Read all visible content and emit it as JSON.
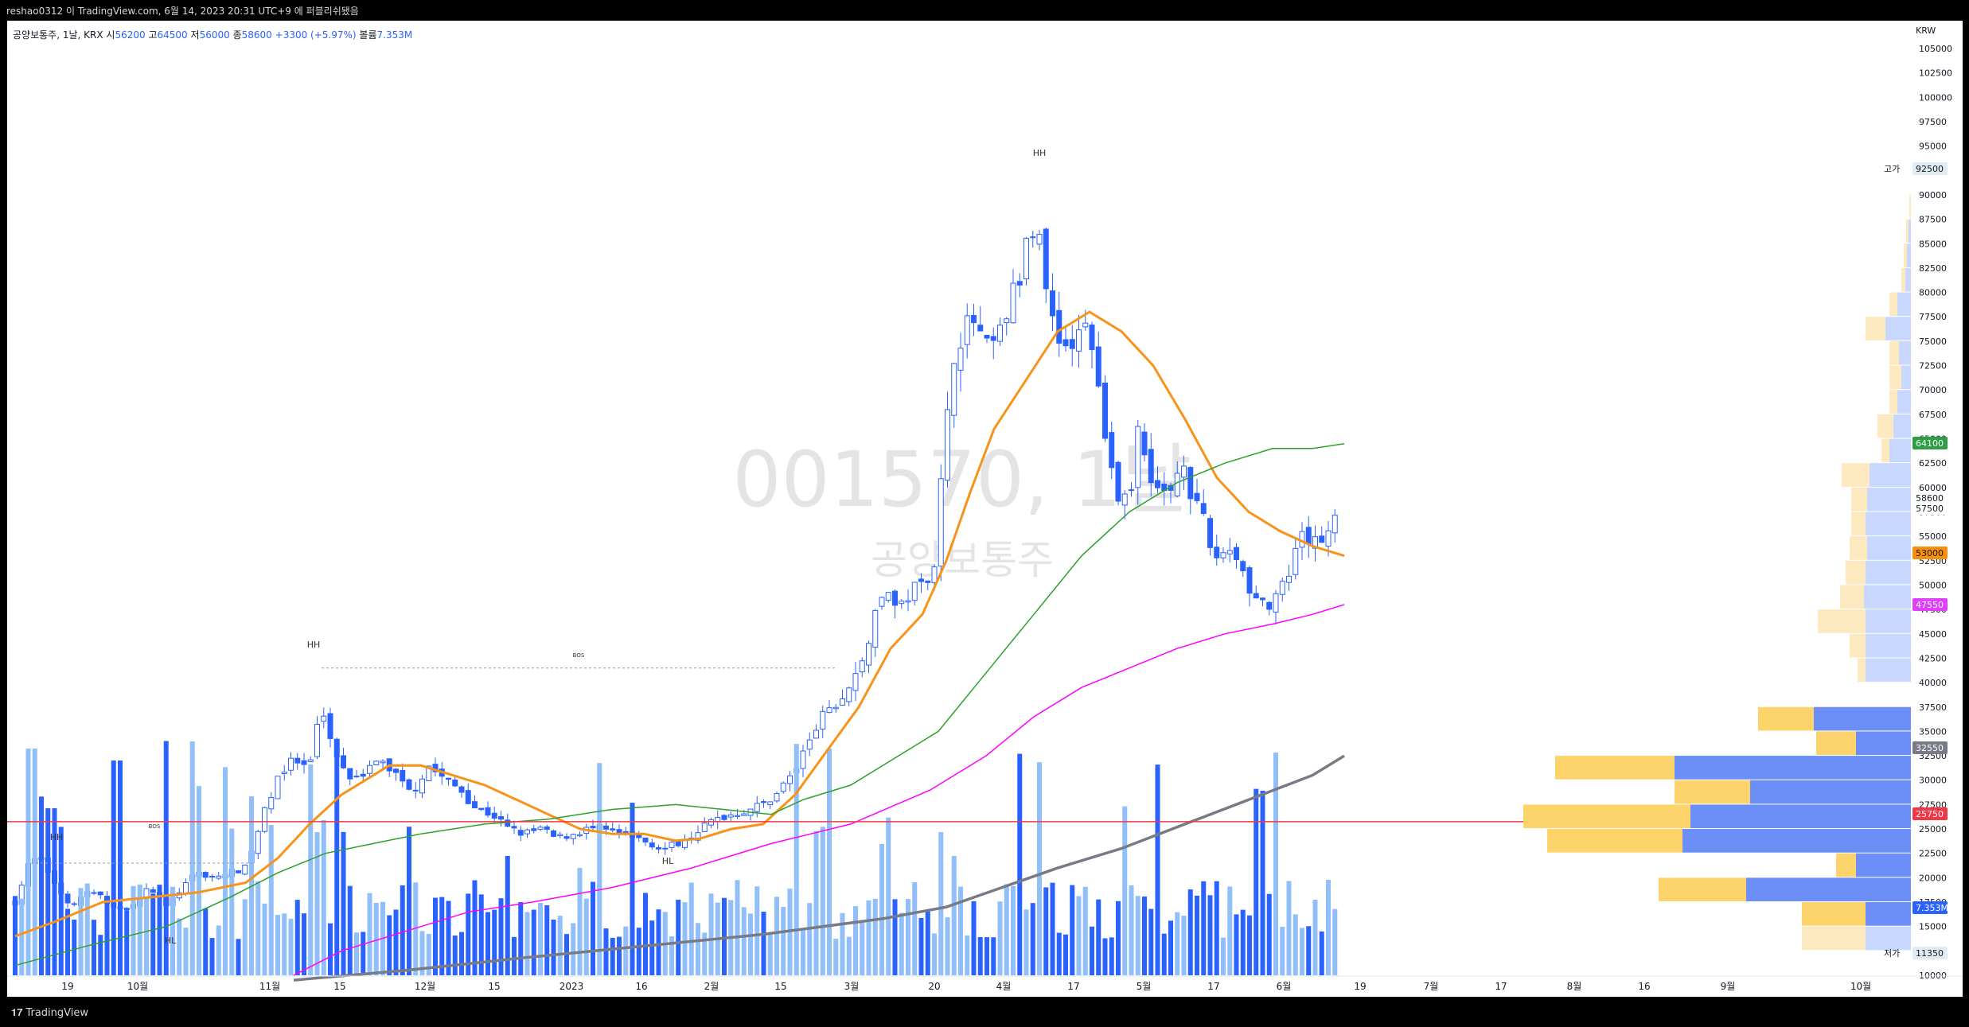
{
  "header": {
    "published": "reshao0312 이 TradingView.com, 6월 14, 2023 20:31 UTC+9 에 퍼블리쉬됐음"
  },
  "legend": {
    "symbol": "공양보통주, 1날, KRX",
    "o_label": "시",
    "o": "56200",
    "h_label": "고",
    "h": "64500",
    "l_label": "저",
    "l": "56000",
    "c_label": "종",
    "c": "58600",
    "change": "+3300 (+5.97%)",
    "vol_label": "볼륨",
    "vol": "7.353M"
  },
  "watermark": {
    "code": "001570, 1날",
    "name": "공양보통주"
  },
  "footer": {
    "brand": "TradingView"
  },
  "colors": {
    "up": "#2962ff",
    "upVol": "#90bff9",
    "ema": "#f7931a",
    "sma50": "#2ca02c",
    "sma100": "#ff00ff",
    "sma200": "#787b86",
    "support": "#f23645",
    "vpUp": "#6b8ff7",
    "vpDown": "#fdd36b"
  },
  "chart_data": {
    "type": "candlestick",
    "currency": "KRW",
    "y_axis_ticks": [
      10000,
      12500,
      15000,
      17500,
      20000,
      22500,
      25000,
      27500,
      30000,
      32500,
      35000,
      37500,
      40000,
      42500,
      45000,
      47500,
      50000,
      52500,
      55000,
      57500,
      60000,
      62500,
      65000,
      67500,
      70000,
      72500,
      75000,
      77500,
      80000,
      82500,
      85000,
      87500,
      90000,
      92500,
      95000,
      97500,
      100000,
      102500,
      105000
    ],
    "ylim": [
      9500,
      107000
    ],
    "x_axis_labels": [
      "19",
      "10월",
      "11월",
      "15",
      "12월",
      "15",
      "2023",
      "16",
      "2월",
      "15",
      "3월",
      "20",
      "4월",
      "17",
      "5월",
      "17",
      "6월",
      "19",
      "7월",
      "17",
      "8월",
      "16",
      "9월",
      "10월"
    ],
    "price_labels": [
      {
        "label": "고가",
        "value": "92500"
      },
      {
        "label": "",
        "value": "64100"
      },
      {
        "label": "",
        "value": "58600"
      },
      {
        "label": "",
        "value": "57500"
      },
      {
        "label": "",
        "value": "53000"
      },
      {
        "label": "",
        "value": "47550"
      },
      {
        "label": "",
        "value": "32550"
      },
      {
        "label": "",
        "value": "25750"
      },
      {
        "label": "",
        "value": "7.353M"
      },
      {
        "label": "저가",
        "value": "11350"
      }
    ],
    "annotations": [
      {
        "text": "HH",
        "date_index": 9,
        "price": 23500
      },
      {
        "text": "BOS",
        "date_index": 35,
        "price": 21200
      },
      {
        "text": "HL",
        "date_index": 40,
        "price": 17500
      },
      {
        "text": "HH",
        "date_index": 60,
        "price": 42000
      },
      {
        "text": "BOS",
        "date_index": 110,
        "price": 41000
      },
      {
        "text": "HL",
        "date_index": 127,
        "price": 22500
      },
      {
        "text": "HH",
        "date_index": 198,
        "price": 95000
      }
    ],
    "horizontal_line": {
      "price": 25750,
      "color": "#f23645"
    },
    "series": [
      {
        "name": "Daily candles",
        "note": "O/H/L/C/volume encoded in script"
      },
      {
        "name": "EMA"
      },
      {
        "name": "SMA50"
      },
      {
        "name": "SMA100"
      },
      {
        "name": "SMA200"
      }
    ],
    "volume_profile_price_range": [
      10000,
      92500
    ]
  }
}
